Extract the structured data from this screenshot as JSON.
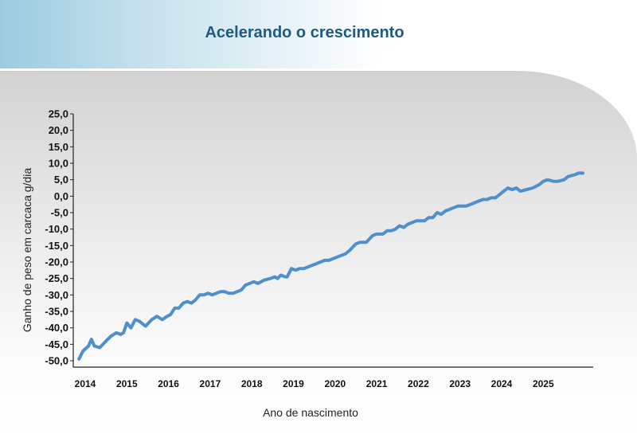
{
  "header": {
    "title": "Acelerando o crescimento"
  },
  "colors": {
    "line": "#4e8fcc",
    "axis": "#222222",
    "title": "#1e5a82"
  },
  "chart_data": {
    "type": "line",
    "title": "Acelerando o crescimento",
    "xlabel": "Ano de nascimento",
    "ylabel": "Ganho de peso em carcaca  g/dia",
    "xlim": [
      2013.8,
      2026.1
    ],
    "ylim": [
      -50,
      25
    ],
    "x_ticks": [
      "2014",
      "2015",
      "2016",
      "2017",
      "2018",
      "2019",
      "2020",
      "2021",
      "2022",
      "2023",
      "2024",
      "2025"
    ],
    "y_ticks": [
      "25,0",
      "20,0",
      "15,0",
      "10,0",
      "5,0",
      "0,0",
      "-5,0",
      "-10,0",
      "-15,0",
      "-20,0",
      "-25,0",
      "-30,0",
      "-35,0",
      "-40,0",
      "-45,0",
      "-50,0"
    ],
    "grid": false,
    "legend": "none",
    "series": [
      {
        "x": [
          2013.85,
          2013.95,
          2014.08,
          2014.15,
          2014.22,
          2014.35,
          2014.5,
          2014.62,
          2014.75,
          2014.85,
          2014.92,
          2015.0,
          2015.1,
          2015.2,
          2015.3,
          2015.45,
          2015.6,
          2015.72,
          2015.85,
          2015.97,
          2016.05,
          2016.15,
          2016.25,
          2016.35,
          2016.45,
          2016.55,
          2016.65,
          2016.75,
          2016.85,
          2016.95,
          2017.05,
          2017.15,
          2017.25,
          2017.35,
          2017.45,
          2017.55,
          2017.65,
          2017.75,
          2017.85,
          2017.95,
          2018.05,
          2018.15,
          2018.3,
          2018.45,
          2018.55,
          2018.62,
          2018.7,
          2018.8,
          2018.85,
          2018.95,
          2019.05,
          2019.15,
          2019.25,
          2019.35,
          2019.45,
          2019.55,
          2019.65,
          2019.75,
          2019.85,
          2019.95,
          2020.05,
          2020.15,
          2020.25,
          2020.35,
          2020.5,
          2020.6,
          2020.75,
          2020.9,
          2021.0,
          2021.05,
          2021.15,
          2021.25,
          2021.35,
          2021.45,
          2021.55,
          2021.65,
          2021.75,
          2021.85,
          2021.95,
          2022.05,
          2022.15,
          2022.25,
          2022.35,
          2022.45,
          2022.55,
          2022.65,
          2022.75,
          2022.85,
          2022.95,
          2023.05,
          2023.15,
          2023.25,
          2023.35,
          2023.45,
          2023.55,
          2023.65,
          2023.75,
          2023.85,
          2023.95,
          2024.05,
          2024.15,
          2024.25,
          2024.35,
          2024.45,
          2024.6,
          2024.75,
          2024.9,
          2025.0,
          2025.1,
          2025.25,
          2025.35,
          2025.5,
          2025.6,
          2025.75,
          2025.85,
          2025.95
        ],
        "y": [
          -49.5,
          -47,
          -45.5,
          -43.5,
          -45.5,
          -46,
          -44,
          -42.5,
          -41.5,
          -42,
          -41.5,
          -38.5,
          -40,
          -37.5,
          -38,
          -39.5,
          -37.5,
          -36.5,
          -37.5,
          -36.5,
          -36,
          -34,
          -34,
          -32.5,
          -32,
          -32.5,
          -31.5,
          -30,
          -30,
          -29.5,
          -30,
          -29.5,
          -29,
          -29,
          -29.5,
          -29.5,
          -29,
          -28.5,
          -27,
          -26.5,
          -26,
          -26.5,
          -25.5,
          -25,
          -24.5,
          -25,
          -24,
          -24.5,
          -24.5,
          -22,
          -22.5,
          -22,
          -22,
          -21.5,
          -21,
          -20.5,
          -20,
          -19.5,
          -19.5,
          -19,
          -18.5,
          -18,
          -17.5,
          -16.5,
          -14.5,
          -14,
          -14,
          -12,
          -11.5,
          -11.5,
          -11.5,
          -10.5,
          -10.5,
          -10,
          -9,
          -9.5,
          -8.5,
          -8,
          -7.5,
          -7.5,
          -7.5,
          -6.5,
          -6.5,
          -5,
          -5.5,
          -4.5,
          -4,
          -3.5,
          -3,
          -3,
          -3,
          -2.5,
          -2,
          -1.5,
          -1,
          -1,
          -0.5,
          -0.5,
          0.5,
          1.5,
          2.5,
          2,
          2.5,
          1.5,
          2,
          2.5,
          3.5,
          4.5,
          5,
          4.5,
          4.5,
          5,
          6,
          6.5,
          7,
          7
        ]
      }
    ]
  }
}
